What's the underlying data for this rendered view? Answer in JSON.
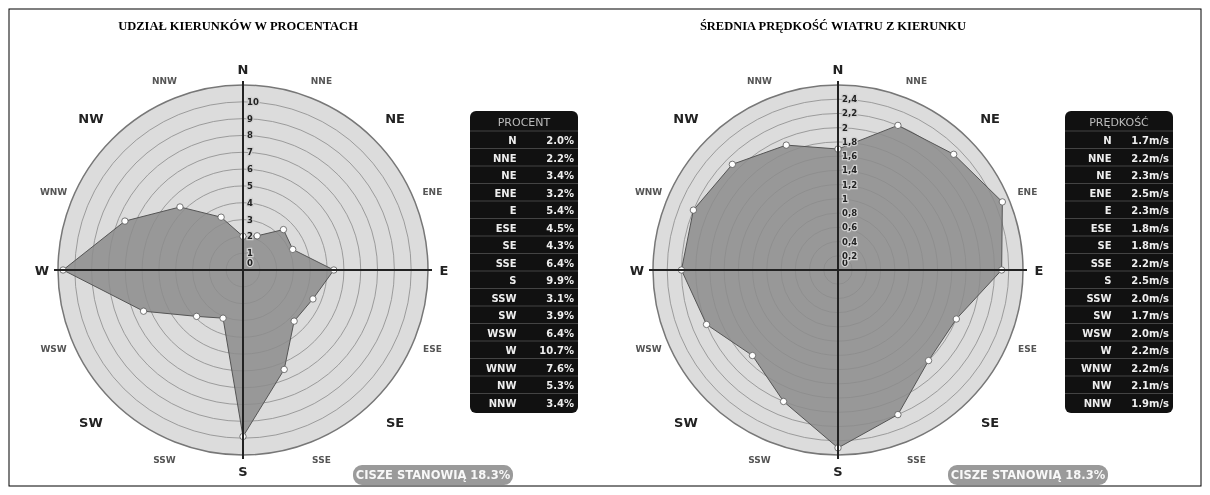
{
  "chart_data": [
    {
      "type": "radar",
      "title": "UDZIAŁ KIERUNKÓW W PROCENTACH",
      "categories": [
        "N",
        "NNE",
        "NE",
        "ENE",
        "E",
        "ESE",
        "SE",
        "SSE",
        "S",
        "SSW",
        "SW",
        "WSW",
        "W",
        "WNW",
        "NW",
        "NNW"
      ],
      "series": [
        {
          "color": "#8c8c8c",
          "values": [
            2.0,
            2.2,
            3.4,
            3.2,
            5.4,
            4.5,
            4.3,
            6.4,
            9.9,
            3.1,
            3.9,
            6.4,
            10.7,
            7.6,
            5.3,
            3.4
          ]
        }
      ],
      "ylim": [
        0,
        11
      ],
      "yticks": [
        0,
        1,
        2,
        3,
        4,
        5,
        6,
        7,
        8,
        9,
        10
      ],
      "grid": true,
      "marker": "circle",
      "annotations": [
        "CISZE STANOWIĄ 18.3%"
      ]
    },
    {
      "type": "other",
      "title": "PROCENT",
      "annotations": [
        "N 2.0%",
        "NNE 2.2%",
        "NE 3.4%",
        "ENE 3.2%",
        "E 5.4%",
        "ESE 4.5%",
        "SE 4.3%",
        "SSE 6.4%",
        "S 9.9%",
        "SSW 3.1%",
        "SW 3.9%",
        "WSW 6.4%",
        "W 10.7%",
        "WNW 7.6%",
        "NW 5.3%",
        "NNW 3.4%"
      ]
    },
    {
      "type": "radar",
      "title": "ŚREDNIA PRĘDKOŚĆ WIATRU Z KIERUNKU",
      "categories": [
        "N",
        "NNE",
        "NE",
        "ENE",
        "E",
        "ESE",
        "SE",
        "SSE",
        "S",
        "SSW",
        "SW",
        "WSW",
        "W",
        "WNW",
        "NW",
        "NNW"
      ],
      "series": [
        {
          "color": "#8c8c8c",
          "values": [
            1.7,
            2.2,
            2.3,
            2.5,
            2.3,
            1.8,
            1.8,
            2.2,
            2.5,
            2.0,
            1.7,
            2.0,
            2.2,
            2.2,
            2.1,
            1.9
          ]
        }
      ],
      "ylim": [
        0,
        2.6
      ],
      "yticks": [
        0,
        {
          "value": 0.2,
          "label": "0,2"
        },
        {
          "value": 0.4,
          "label": "0,4"
        },
        {
          "value": 0.6,
          "label": "0,6"
        },
        {
          "value": 0.8,
          "label": "0,8"
        },
        1,
        {
          "value": 1.2,
          "label": "1,2"
        },
        {
          "value": 1.4,
          "label": "1,4"
        },
        {
          "value": 1.6,
          "label": "1,6"
        },
        {
          "value": 1.8,
          "label": "1,8"
        },
        2,
        {
          "value": 2.2,
          "label": "2,2"
        },
        {
          "value": 2.4,
          "label": "2,4"
        }
      ],
      "grid": true,
      "marker": "circle",
      "annotations": [
        "CISZE STANOWIĄ 18.3%"
      ]
    },
    {
      "type": "other",
      "title": "PRĘDKOŚĆ",
      "annotations": [
        "N 1.7m/s",
        "NNE 2.2m/s",
        "NE 2.3m/s",
        "ENE 2.5m/s",
        "E 2.3m/s",
        "ESE 1.8m/s",
        "SE 1.8m/s",
        "SSE 2.2m/s",
        "S 2.5m/s",
        "SSW 2.0m/s",
        "SW 1.7m/s",
        "WSW 2.0m/s",
        "W 2.2m/s",
        "WNW 2.2m/s",
        "NW 2.1m/s",
        "NNW 1.9m/s"
      ]
    }
  ]
}
